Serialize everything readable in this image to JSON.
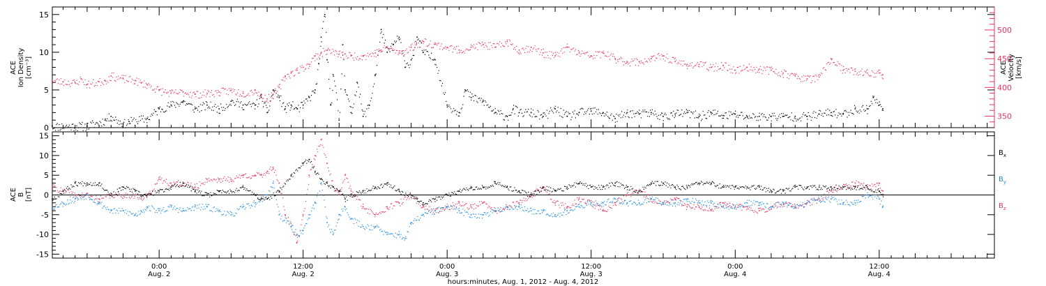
{
  "colors": {
    "black": "#000000",
    "red": "#e8335c",
    "blue": "#1f8ee0",
    "axis": "#000000",
    "velocity_axis": "#e8335c"
  },
  "x_axis": {
    "ticks": [
      {
        "time": "0:00",
        "date": "Aug. 2",
        "hours": 24
      },
      {
        "time": "12:00",
        "date": "Aug. 2",
        "hours": 36
      },
      {
        "time": "0:00",
        "date": "Aug. 3",
        "hours": 48
      },
      {
        "time": "12:00",
        "date": "Aug. 3",
        "hours": 60
      },
      {
        "time": "0:00",
        "date": "Aug. 4",
        "hours": 72
      },
      {
        "time": "12:00",
        "date": "Aug. 4",
        "hours": 84
      }
    ],
    "label": "hours:minutes, Aug.  1, 2012 - Aug.  4, 2012",
    "range_hours": [
      15.1,
      93.6
    ]
  },
  "chart_data": [
    {
      "type": "scatter",
      "ylabel_lines": [
        "ACE",
        "Ion Density",
        "[cm⁻³]"
      ],
      "ylim": [
        0,
        16
      ],
      "y_ticks": [
        "0",
        "5",
        "10",
        "15"
      ],
      "right_axis": {
        "label_lines": [
          "ACE",
          "Velocity",
          "[km/s]"
        ],
        "ylim": [
          330,
          540
        ],
        "ticks": [
          "350",
          "400",
          "450",
          "500"
        ]
      },
      "series": [
        {
          "color": "black",
          "axis": "left",
          "x": [
            15.1,
            18,
            19.5,
            20,
            21,
            21.5,
            23,
            24,
            25,
            26,
            27,
            28,
            29,
            30,
            31,
            32,
            32.5,
            33,
            33.5,
            34,
            34.5,
            35,
            35.5,
            36,
            36.5,
            37,
            37.3,
            37.5,
            37.8,
            38,
            38.3,
            38.5,
            39,
            39.3,
            39.5,
            40,
            40.5,
            41,
            41.5,
            42,
            42.5,
            43,
            43.5,
            44,
            44.5,
            45,
            45.5,
            46,
            47,
            48,
            49,
            49.5,
            50,
            51,
            52,
            53,
            53.5,
            54,
            55,
            56,
            57,
            58,
            59,
            60,
            61,
            62,
            63,
            64,
            65,
            66,
            67,
            68,
            69,
            70,
            71,
            72,
            73,
            74,
            75,
            76,
            77,
            78,
            79,
            80,
            81,
            82,
            83,
            83.5,
            84,
            84.3
          ],
          "y": [
            0.2,
            0.2,
            1,
            1.5,
            0.5,
            0.8,
            1.2,
            2.5,
            3,
            3.5,
            2.5,
            3,
            2.5,
            3.5,
            3,
            3,
            4,
            2,
            5,
            4,
            2.5,
            3,
            2.5,
            3,
            4,
            5,
            8.5,
            12,
            15,
            9,
            3,
            7,
            1,
            11,
            5,
            2,
            6,
            1.5,
            3,
            7,
            13,
            10,
            11,
            12,
            8,
            9,
            12,
            10,
            9,
            3,
            2,
            5,
            4,
            3.5,
            2,
            1.5,
            2.5,
            2,
            2,
            1.5,
            2.5,
            1.5,
            2,
            2.2,
            2,
            1.2,
            2,
            1.8,
            2,
            1.5,
            1.8,
            2,
            1.5,
            2,
            1.6,
            1.8,
            1.5,
            1.5,
            1.5,
            1.5,
            1.5,
            1.5,
            1.8,
            2,
            1.8,
            2.5,
            2.5,
            4,
            3,
            2.5
          ]
        },
        {
          "color": "red",
          "axis": "right",
          "x": [
            15.1,
            16,
            17,
            17.5,
            18,
            19,
            19.5,
            20,
            21,
            22,
            22.5,
            23,
            24,
            25,
            26,
            27,
            28,
            29,
            30,
            31,
            32,
            32.5,
            33,
            33.5,
            34,
            34.5,
            35,
            35.5,
            36,
            36.5,
            37,
            37.5,
            38,
            39,
            40,
            41,
            42,
            42.5,
            43,
            44,
            45,
            46,
            47,
            48,
            49,
            50,
            51,
            52,
            53,
            54,
            55,
            56,
            57,
            58,
            59,
            60,
            61,
            62,
            63,
            64,
            65,
            66,
            67,
            68,
            69,
            70,
            71,
            72,
            73,
            74,
            75,
            76,
            77,
            78,
            79,
            80,
            81,
            82,
            83,
            84,
            84.3
          ],
          "y": [
            412,
            410,
            408,
            415,
            405,
            410,
            412,
            420,
            415,
            412,
            408,
            405,
            395,
            390,
            392,
            388,
            390,
            392,
            395,
            390,
            395,
            385,
            380,
            388,
            400,
            420,
            425,
            430,
            435,
            440,
            455,
            460,
            465,
            458,
            455,
            455,
            460,
            465,
            470,
            460,
            470,
            480,
            475,
            470,
            465,
            470,
            475,
            470,
            480,
            465,
            470,
            460,
            455,
            470,
            460,
            455,
            460,
            450,
            445,
            445,
            450,
            455,
            445,
            440,
            440,
            435,
            438,
            430,
            435,
            432,
            430,
            425,
            420,
            415,
            418,
            450,
            430,
            428,
            425,
            425,
            422
          ]
        }
      ]
    },
    {
      "type": "scatter",
      "ylabel_lines": [
        "ACE",
        "B",
        "[nT]"
      ],
      "ylim": [
        -16,
        16
      ],
      "y_ticks": [
        "-15",
        "-10",
        "-5",
        "0",
        "5",
        "10",
        "15"
      ],
      "legend": [
        "Bx",
        "By",
        "Bz"
      ],
      "series": [
        {
          "name": "Bx",
          "color": "black",
          "x": [
            15.1,
            16,
            17,
            18,
            19,
            20,
            21,
            22,
            22.5,
            23,
            24,
            25,
            26,
            27,
            28,
            29,
            30,
            31,
            32,
            32.5,
            33,
            34,
            35,
            36,
            36.5,
            37,
            37.5,
            38,
            38.5,
            39,
            39.5,
            40,
            41,
            42,
            43,
            44,
            45,
            45.5,
            46,
            47,
            48,
            49,
            50,
            51,
            52,
            53,
            54,
            55,
            56,
            57,
            58,
            59,
            60,
            61,
            62,
            63,
            64,
            65,
            66,
            67,
            68,
            69,
            70,
            71,
            72,
            73,
            74,
            75,
            76,
            77,
            78,
            79,
            80,
            81,
            82,
            83,
            84,
            84.3
          ],
          "y": [
            -1,
            1,
            3,
            3,
            3,
            0,
            2,
            1,
            0,
            0,
            1,
            2,
            3,
            1,
            0,
            1,
            1,
            2,
            0,
            -1,
            -1,
            1,
            5,
            8,
            9,
            6,
            4,
            3,
            2,
            1,
            -1,
            0,
            1,
            2,
            3,
            1,
            0,
            -1,
            -2,
            -1,
            0,
            1,
            2,
            2,
            3,
            2,
            1,
            0,
            2,
            1,
            2,
            3,
            2,
            2,
            3,
            2,
            1,
            3,
            3,
            2,
            2,
            3,
            3,
            2,
            2,
            2,
            2,
            1,
            1,
            2,
            2,
            2,
            2,
            2,
            2,
            2,
            1,
            0
          ]
        },
        {
          "name": "By",
          "color": "blue",
          "x": [
            15.1,
            16,
            17,
            18,
            19,
            20,
            21,
            22,
            22.5,
            23,
            24,
            25,
            26,
            27,
            28,
            29,
            30,
            31,
            32,
            32.5,
            33,
            33.5,
            34,
            35,
            35.5,
            36,
            36.5,
            37,
            37.5,
            38,
            38.5,
            39,
            39.5,
            40,
            41,
            42,
            43,
            44,
            44.5,
            45,
            46,
            47,
            48,
            49,
            50,
            51,
            52,
            53,
            54,
            55,
            56,
            57,
            58,
            59,
            60,
            61,
            62,
            63,
            64,
            65,
            66,
            67,
            68,
            69,
            70,
            71,
            72,
            73,
            74,
            75,
            76,
            77,
            78,
            79,
            80,
            81,
            82,
            83,
            84,
            84.3
          ],
          "y": [
            -3,
            -2,
            -1,
            0,
            -2,
            -4,
            -4,
            -5,
            -4,
            -3,
            -4,
            -3,
            -4,
            -3,
            -3,
            -4,
            -5,
            -3,
            -2,
            -1,
            0,
            3,
            -5,
            -8,
            -10,
            -9,
            -5,
            -2,
            3,
            -7,
            -10,
            -5,
            -3,
            -6,
            -8,
            -8,
            -10,
            -10,
            -11,
            -7,
            -5,
            -4,
            -3,
            -4,
            -5,
            -5,
            -4,
            -3,
            -3,
            -4,
            -4,
            -5,
            -4,
            -3,
            -2,
            -2,
            -1,
            -2,
            -2,
            -1,
            -2,
            -2,
            -1,
            -2,
            -2,
            -3,
            -3,
            -2,
            -2,
            -3,
            -2,
            -3,
            -2,
            -1,
            -1,
            -2,
            -2,
            0,
            -1,
            -3
          ]
        },
        {
          "name": "Bz",
          "color": "red",
          "x": [
            15.1,
            16,
            17,
            18,
            19,
            20,
            21,
            22,
            22.5,
            23,
            24,
            25,
            26,
            27,
            28,
            29,
            30,
            31,
            32,
            32.5,
            33,
            33.5,
            34,
            34.5,
            35,
            35.5,
            36,
            36.5,
            37,
            37.5,
            38,
            38.5,
            39,
            39.5,
            40,
            41,
            42,
            43,
            44,
            45,
            46,
            47,
            48,
            49,
            50,
            51,
            52,
            53,
            54,
            55,
            56,
            57,
            58,
            59,
            60,
            61,
            62,
            63,
            64,
            65,
            66,
            67,
            68,
            69,
            70,
            71,
            72,
            73,
            74,
            75,
            76,
            77,
            78,
            79,
            80,
            81,
            82,
            83,
            84,
            84.3
          ],
          "y": [
            2,
            1,
            0,
            0,
            -1,
            0,
            0,
            0,
            -1,
            0,
            4,
            3,
            3,
            2,
            4,
            4,
            4,
            5,
            5,
            5,
            6,
            7,
            3,
            -5,
            -8,
            -12,
            -5,
            5,
            10,
            14,
            8,
            2,
            0,
            5,
            1,
            -3,
            -5,
            -3,
            -2,
            0,
            -3,
            -4,
            -3,
            -2,
            -3,
            -2,
            -4,
            -3,
            -2,
            0,
            2,
            -2,
            -3,
            -1,
            -2,
            -4,
            -2,
            0,
            1,
            -1,
            -2,
            -1,
            -3,
            -3,
            -4,
            -2,
            -3,
            -3,
            -4,
            -3,
            -2,
            -3,
            -2,
            -1,
            1,
            2,
            3,
            2,
            3,
            1
          ]
        }
      ]
    }
  ]
}
